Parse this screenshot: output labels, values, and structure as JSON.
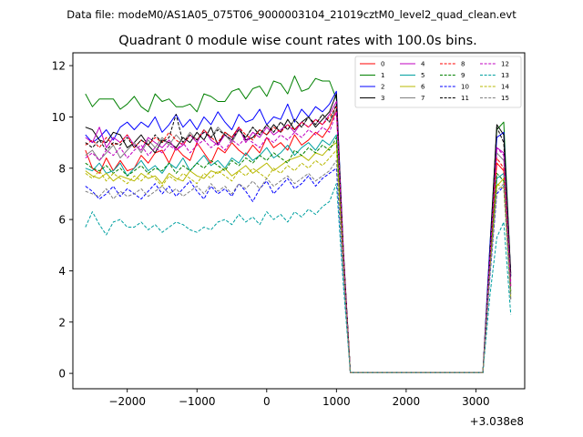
{
  "chart_data": {
    "type": "line",
    "suptitle": "Data file: modeM0/AS1A05_075T06_9000003104_21019cztM0_level2_quad_clean.evt",
    "title": "Quadrant 0 module wise count rates with 100.0s bins.",
    "xlabel": "",
    "ylabel": "",
    "x_offset_label": "+3.038e8",
    "xlim": [
      -2780,
      3700
    ],
    "ylim": [
      -0.6,
      12.5
    ],
    "x_ticks": [
      -2000,
      -1000,
      0,
      1000,
      2000,
      3000
    ],
    "x_tick_labels": [
      "−2000",
      "−1000",
      "0",
      "1000",
      "2000",
      "3000"
    ],
    "y_ticks": [
      0,
      2,
      4,
      6,
      8,
      10,
      12
    ],
    "y_tick_labels": [
      "0",
      "2",
      "4",
      "6",
      "8",
      "10",
      "12"
    ],
    "grid": false,
    "legend_position": "upper-right",
    "x": [
      -2600,
      -2500,
      -2400,
      -2300,
      -2200,
      -2100,
      -2000,
      -1900,
      -1800,
      -1700,
      -1600,
      -1500,
      -1400,
      -1300,
      -1200,
      -1100,
      -1000,
      -900,
      -800,
      -700,
      -600,
      -500,
      -400,
      -300,
      -200,
      -100,
      0,
      100,
      200,
      300,
      400,
      500,
      600,
      700,
      800,
      900,
      1000,
      1100,
      1200,
      1300,
      1400,
      1500,
      1600,
      1700,
      1800,
      1900,
      2000,
      2100,
      2200,
      2300,
      2400,
      2500,
      2600,
      2700,
      2800,
      2900,
      3000,
      3100,
      3200,
      3300,
      3400,
      3500
    ],
    "series": [
      {
        "name": "0",
        "color": "#ff0000",
        "dash": "solid",
        "values": [
          8.7,
          8.0,
          7.8,
          8.4,
          7.9,
          8.3,
          7.9,
          8.0,
          8.5,
          8.2,
          8.6,
          8.7,
          8.2,
          8.8,
          8.5,
          8.3,
          9.0,
          8.6,
          8.2,
          8.8,
          8.6,
          9.0,
          8.7,
          8.5,
          8.9,
          8.6,
          9.2,
          8.8,
          9.0,
          8.7,
          9.3,
          8.9,
          9.1,
          9.4,
          9.2,
          9.6,
          10.3,
          4.5,
          0.03,
          0.03,
          0.03,
          0.03,
          0.03,
          0.03,
          0.03,
          0.03,
          0.03,
          0.03,
          0.03,
          0.03,
          0.03,
          0.03,
          0.03,
          0.03,
          0.03,
          0.03,
          0.03,
          0.03,
          4.5,
          8.2,
          7.9,
          3.2
        ]
      },
      {
        "name": "1",
        "color": "#008000",
        "dash": "solid",
        "values": [
          10.9,
          10.4,
          10.7,
          10.7,
          10.7,
          10.3,
          10.5,
          10.8,
          10.4,
          10.2,
          10.9,
          10.6,
          10.7,
          10.4,
          10.4,
          10.5,
          10.2,
          10.9,
          10.8,
          10.6,
          10.6,
          11.0,
          11.1,
          10.7,
          11.1,
          11.2,
          10.8,
          11.4,
          11.3,
          10.9,
          11.6,
          11.0,
          11.1,
          11.5,
          11.4,
          11.4,
          10.7,
          4.8,
          0.03,
          0.03,
          0.03,
          0.03,
          0.03,
          0.03,
          0.03,
          0.03,
          0.03,
          0.03,
          0.03,
          0.03,
          0.03,
          0.03,
          0.03,
          0.03,
          0.03,
          0.03,
          0.03,
          0.03,
          4.9,
          9.5,
          9.8,
          3.8
        ]
      },
      {
        "name": "2",
        "color": "#0000ff",
        "dash": "solid",
        "values": [
          9.3,
          9.0,
          9.2,
          9.5,
          9.1,
          9.6,
          9.8,
          9.5,
          9.8,
          9.6,
          10.0,
          9.4,
          9.7,
          10.1,
          9.6,
          9.9,
          9.5,
          10.0,
          9.7,
          10.2,
          9.8,
          9.5,
          10.1,
          9.8,
          9.9,
          10.3,
          9.7,
          10.0,
          9.9,
          10.5,
          9.8,
          10.3,
          10.0,
          10.4,
          10.2,
          10.5,
          11.0,
          4.7,
          0.03,
          0.03,
          0.03,
          0.03,
          0.03,
          0.03,
          0.03,
          0.03,
          0.03,
          0.03,
          0.03,
          0.03,
          0.03,
          0.03,
          0.03,
          0.03,
          0.03,
          0.03,
          0.03,
          0.03,
          4.9,
          9.2,
          9.4,
          3.8
        ]
      },
      {
        "name": "3",
        "color": "#000000",
        "dash": "solid",
        "values": [
          9.6,
          9.5,
          9.1,
          9.0,
          9.4,
          9.3,
          8.8,
          9.0,
          9.3,
          8.9,
          8.6,
          9.1,
          9.0,
          8.8,
          9.2,
          9.0,
          9.4,
          9.1,
          9.6,
          8.9,
          9.4,
          9.2,
          9.6,
          9.1,
          9.2,
          9.5,
          9.3,
          9.7,
          9.4,
          9.9,
          9.5,
          9.8,
          10.0,
          9.6,
          9.9,
          10.2,
          10.9,
          4.6,
          0.03,
          0.03,
          0.03,
          0.03,
          0.03,
          0.03,
          0.03,
          0.03,
          0.03,
          0.03,
          0.03,
          0.03,
          0.03,
          0.03,
          0.03,
          0.03,
          0.03,
          0.03,
          0.03,
          0.03,
          4.6,
          9.7,
          9.3,
          3.9
        ]
      },
      {
        "name": "4",
        "color": "#c000c0",
        "dash": "solid",
        "values": [
          9.2,
          9.0,
          9.6,
          8.8,
          9.2,
          9.0,
          9.3,
          8.9,
          8.7,
          9.2,
          9.0,
          8.8,
          9.1,
          8.7,
          8.9,
          9.3,
          9.0,
          9.5,
          9.1,
          8.9,
          9.3,
          9.1,
          9.6,
          9.0,
          9.4,
          9.2,
          9.6,
          9.3,
          9.5,
          9.7,
          9.4,
          9.8,
          9.6,
          9.9,
          9.7,
          10.1,
          10.6,
          4.5,
          0.03,
          0.03,
          0.03,
          0.03,
          0.03,
          0.03,
          0.03,
          0.03,
          0.03,
          0.03,
          0.03,
          0.03,
          0.03,
          0.03,
          0.03,
          0.03,
          0.03,
          0.03,
          0.03,
          0.03,
          4.5,
          8.8,
          8.6,
          3.6
        ]
      },
      {
        "name": "5",
        "color": "#00a0a0",
        "dash": "solid",
        "values": [
          8.0,
          7.9,
          8.2,
          7.8,
          7.9,
          8.2,
          7.7,
          8.0,
          8.3,
          7.9,
          8.1,
          7.8,
          8.2,
          8.0,
          8.4,
          7.9,
          8.2,
          8.5,
          8.1,
          8.3,
          8.0,
          8.4,
          8.2,
          8.6,
          8.3,
          8.5,
          8.8,
          8.4,
          8.6,
          8.9,
          8.5,
          8.8,
          9.0,
          8.7,
          9.1,
          8.9,
          9.3,
          4.3,
          0.03,
          0.03,
          0.03,
          0.03,
          0.03,
          0.03,
          0.03,
          0.03,
          0.03,
          0.03,
          0.03,
          0.03,
          0.03,
          0.03,
          0.03,
          0.03,
          0.03,
          0.03,
          0.03,
          0.03,
          4.1,
          7.6,
          7.8,
          3.2
        ]
      },
      {
        "name": "6",
        "color": "#b8b800",
        "dash": "solid",
        "values": [
          7.9,
          7.7,
          7.6,
          7.8,
          7.5,
          7.7,
          7.6,
          7.5,
          7.8,
          7.6,
          7.7,
          7.4,
          7.8,
          7.6,
          7.5,
          7.9,
          7.7,
          7.6,
          7.9,
          7.8,
          8.0,
          7.7,
          7.9,
          8.1,
          7.8,
          8.0,
          8.2,
          7.9,
          8.1,
          8.3,
          8.4,
          8.5,
          8.3,
          8.6,
          8.5,
          8.8,
          9.0,
          4.2,
          0.03,
          0.03,
          0.03,
          0.03,
          0.03,
          0.03,
          0.03,
          0.03,
          0.03,
          0.03,
          0.03,
          0.03,
          0.03,
          0.03,
          0.03,
          0.03,
          0.03,
          0.03,
          0.03,
          0.03,
          4.0,
          7.3,
          7.6,
          3.0
        ]
      },
      {
        "name": "7",
        "color": "#808080",
        "dash": "solid",
        "values": [
          8.5,
          8.7,
          8.3,
          8.6,
          8.9,
          8.4,
          8.7,
          9.0,
          8.6,
          9.1,
          8.8,
          9.2,
          8.9,
          9.3,
          9.0,
          9.4,
          9.1,
          9.5,
          9.2,
          9.6,
          9.3,
          9.0,
          9.5,
          9.2,
          9.6,
          9.3,
          9.7,
          9.4,
          9.8,
          9.5,
          9.9,
          9.6,
          10.0,
          9.7,
          10.1,
          9.8,
          10.3,
          4.6,
          0.03,
          0.03,
          0.03,
          0.03,
          0.03,
          0.03,
          0.03,
          0.03,
          0.03,
          0.03,
          0.03,
          0.03,
          0.03,
          0.03,
          0.03,
          0.03,
          0.03,
          0.03,
          0.03,
          0.03,
          4.4,
          8.6,
          8.3,
          3.5
        ]
      },
      {
        "name": "8",
        "color": "#ff0000",
        "dash": "dashed",
        "values": [
          8.9,
          9.1,
          8.8,
          9.2,
          8.9,
          9.0,
          9.3,
          8.8,
          9.1,
          8.9,
          9.2,
          9.0,
          9.4,
          9.1,
          8.9,
          9.3,
          9.1,
          9.5,
          9.2,
          9.0,
          9.4,
          9.2,
          9.6,
          9.3,
          9.1,
          9.5,
          9.3,
          9.6,
          9.4,
          9.7,
          9.5,
          9.8,
          9.6,
          9.9,
          9.7,
          10.0,
          10.4,
          4.7,
          0.03,
          0.03,
          0.03,
          0.03,
          0.03,
          0.03,
          0.03,
          0.03,
          0.03,
          0.03,
          0.03,
          0.03,
          0.03,
          0.03,
          0.03,
          0.03,
          0.03,
          0.03,
          0.03,
          0.03,
          4.3,
          8.4,
          8.0,
          3.4
        ]
      },
      {
        "name": "9",
        "color": "#008000",
        "dash": "dashed",
        "values": [
          8.2,
          8.0,
          7.9,
          8.1,
          7.8,
          8.0,
          7.7,
          7.9,
          8.1,
          7.8,
          8.0,
          7.9,
          8.2,
          7.8,
          8.1,
          7.9,
          8.2,
          8.0,
          8.3,
          8.1,
          7.9,
          8.3,
          8.1,
          8.4,
          8.2,
          8.5,
          8.3,
          8.6,
          8.4,
          8.2,
          8.7,
          8.5,
          8.8,
          8.6,
          8.9,
          8.7,
          9.2,
          4.3,
          0.03,
          0.03,
          0.03,
          0.03,
          0.03,
          0.03,
          0.03,
          0.03,
          0.03,
          0.03,
          0.03,
          0.03,
          0.03,
          0.03,
          0.03,
          0.03,
          0.03,
          0.03,
          0.03,
          0.03,
          4.1,
          7.8,
          7.5,
          3.1
        ]
      },
      {
        "name": "10",
        "color": "#0000ff",
        "dash": "dashed",
        "values": [
          7.3,
          7.1,
          6.8,
          7.0,
          7.3,
          6.9,
          7.2,
          7.0,
          6.8,
          7.1,
          7.4,
          7.0,
          7.3,
          6.9,
          7.2,
          7.5,
          7.1,
          6.8,
          7.3,
          7.0,
          7.2,
          6.9,
          7.4,
          7.1,
          6.7,
          7.2,
          7.5,
          7.0,
          7.3,
          7.6,
          7.2,
          7.4,
          7.7,
          7.3,
          7.6,
          7.8,
          8.0,
          3.8,
          0.03,
          0.03,
          0.03,
          0.03,
          0.03,
          0.03,
          0.03,
          0.03,
          0.03,
          0.03,
          0.03,
          0.03,
          0.03,
          0.03,
          0.03,
          0.03,
          0.03,
          0.03,
          0.03,
          0.03,
          3.7,
          7.0,
          7.3,
          2.9
        ]
      },
      {
        "name": "11",
        "color": "#000000",
        "dash": "dashed",
        "values": [
          9.0,
          8.8,
          9.1,
          8.7,
          9.0,
          8.9,
          9.2,
          8.8,
          9.1,
          8.9,
          9.3,
          9.0,
          9.2,
          10.1,
          9.0,
          9.3,
          9.1,
          9.4,
          9.2,
          9.5,
          9.3,
          9.1,
          9.5,
          9.2,
          9.6,
          9.3,
          9.7,
          9.4,
          9.8,
          9.5,
          9.9,
          9.6,
          10.0,
          9.7,
          10.1,
          9.8,
          10.5,
          4.7,
          0.03,
          0.03,
          0.03,
          0.03,
          0.03,
          0.03,
          0.03,
          0.03,
          0.03,
          0.03,
          0.03,
          0.03,
          0.03,
          0.03,
          0.03,
          0.03,
          0.03,
          0.03,
          0.03,
          0.03,
          4.5,
          9.6,
          9.0,
          3.7
        ]
      },
      {
        "name": "12",
        "color": "#c000c0",
        "dash": "dashed",
        "values": [
          8.4,
          8.6,
          8.3,
          8.7,
          8.5,
          8.8,
          8.4,
          8.7,
          8.9,
          8.5,
          8.8,
          8.6,
          8.9,
          8.7,
          9.0,
          8.6,
          8.9,
          9.1,
          8.8,
          9.0,
          8.7,
          9.1,
          8.9,
          9.2,
          9.0,
          8.8,
          9.2,
          9.0,
          9.3,
          9.1,
          9.4,
          9.2,
          9.5,
          9.3,
          9.6,
          9.4,
          10.2,
          4.6,
          0.03,
          0.03,
          0.03,
          0.03,
          0.03,
          0.03,
          0.03,
          0.03,
          0.03,
          0.03,
          0.03,
          0.03,
          0.03,
          0.03,
          0.03,
          0.03,
          0.03,
          0.03,
          0.03,
          0.03,
          4.4,
          8.8,
          8.5,
          3.4
        ]
      },
      {
        "name": "13",
        "color": "#00a0a0",
        "dash": "dashed",
        "values": [
          5.7,
          6.3,
          5.8,
          5.4,
          5.9,
          6.0,
          5.7,
          5.7,
          5.9,
          5.6,
          5.8,
          5.5,
          5.7,
          5.9,
          5.8,
          5.6,
          5.5,
          5.7,
          5.6,
          5.9,
          6.0,
          5.8,
          6.2,
          5.9,
          6.1,
          5.8,
          6.3,
          6.0,
          6.2,
          5.9,
          6.3,
          6.1,
          6.4,
          6.2,
          6.5,
          6.7,
          7.4,
          3.4,
          0.03,
          0.03,
          0.03,
          0.03,
          0.03,
          0.03,
          0.03,
          0.03,
          0.03,
          0.03,
          0.03,
          0.03,
          0.03,
          0.03,
          0.03,
          0.03,
          0.03,
          0.03,
          0.03,
          0.03,
          3.0,
          5.3,
          5.9,
          2.3
        ]
      },
      {
        "name": "14",
        "color": "#b8b800",
        "dash": "dashed",
        "values": [
          7.8,
          7.6,
          7.9,
          7.5,
          7.8,
          7.6,
          7.4,
          7.7,
          7.5,
          7.8,
          7.6,
          7.3,
          7.7,
          7.5,
          7.8,
          7.6,
          7.4,
          7.8,
          7.6,
          7.9,
          7.7,
          7.5,
          7.9,
          7.7,
          8.0,
          7.8,
          7.6,
          8.0,
          7.8,
          8.1,
          7.9,
          8.2,
          8.0,
          8.3,
          8.1,
          8.4,
          8.7,
          4.1,
          0.03,
          0.03,
          0.03,
          0.03,
          0.03,
          0.03,
          0.03,
          0.03,
          0.03,
          0.03,
          0.03,
          0.03,
          0.03,
          0.03,
          0.03,
          0.03,
          0.03,
          0.03,
          0.03,
          0.03,
          3.9,
          7.4,
          7.2,
          2.9
        ]
      },
      {
        "name": "15",
        "color": "#808080",
        "dash": "dashed",
        "values": [
          7.1,
          7.0,
          6.9,
          7.2,
          6.8,
          7.1,
          6.9,
          7.0,
          7.2,
          6.9,
          7.1,
          7.3,
          7.0,
          7.2,
          6.9,
          7.1,
          7.3,
          7.0,
          7.4,
          7.1,
          7.3,
          7.0,
          7.4,
          7.2,
          7.5,
          7.2,
          7.6,
          7.3,
          7.5,
          7.7,
          7.4,
          7.6,
          7.8,
          7.5,
          7.7,
          7.9,
          8.3,
          3.9,
          0.03,
          0.03,
          0.03,
          0.03,
          0.03,
          0.03,
          0.03,
          0.03,
          0.03,
          0.03,
          0.03,
          0.03,
          0.03,
          0.03,
          0.03,
          0.03,
          0.03,
          0.03,
          0.03,
          0.03,
          3.8,
          7.1,
          7.4,
          2.8
        ]
      }
    ]
  }
}
